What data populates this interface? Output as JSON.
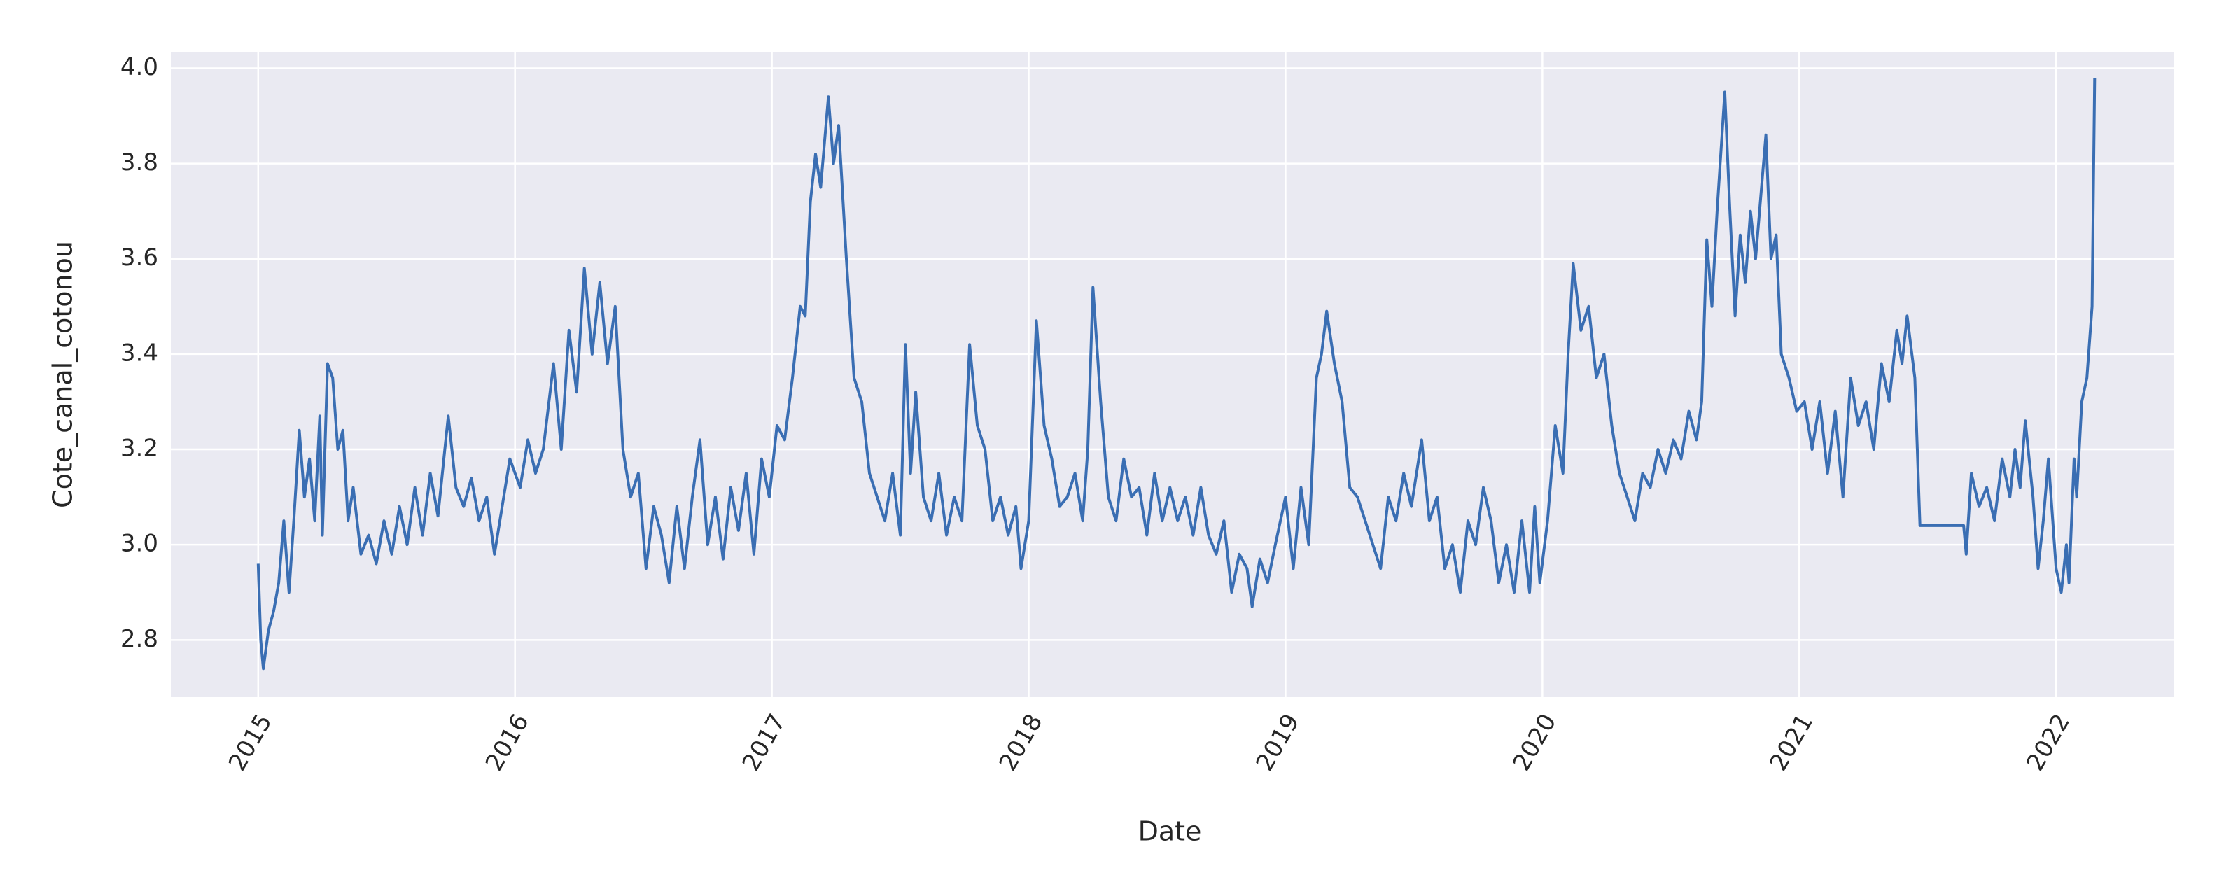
{
  "chart_data": {
    "type": "line",
    "x_label": "Date",
    "y_label": "Cote_canal_cotonou",
    "color": "#3a6eb3",
    "grid": true,
    "xlim": [
      2014.66,
      2022.46
    ],
    "xticks": [
      2015,
      2016,
      2017,
      2018,
      2019,
      2020,
      2021,
      2022
    ],
    "ylim": [
      2.68,
      4.033
    ],
    "yticks": [
      {
        "value": 2.8,
        "label": "2.8"
      },
      {
        "value": 3.0,
        "label": "3.0"
      },
      {
        "value": 3.2,
        "label": "3.2"
      },
      {
        "value": 3.4,
        "label": "3.4"
      },
      {
        "value": 3.6,
        "label": "3.6"
      },
      {
        "value": 3.8,
        "label": "3.8"
      },
      {
        "value": 4.0,
        "label": "4.0"
      }
    ],
    "x": [
      2015.0,
      2015.01,
      2015.02,
      2015.04,
      2015.06,
      2015.08,
      2015.1,
      2015.12,
      2015.14,
      2015.16,
      2015.18,
      2015.2,
      2015.22,
      2015.24,
      2015.25,
      2015.27,
      2015.29,
      2015.31,
      2015.33,
      2015.35,
      2015.37,
      2015.4,
      2015.43,
      2015.46,
      2015.49,
      2015.52,
      2015.55,
      2015.58,
      2015.61,
      2015.64,
      2015.67,
      2015.7,
      2015.74,
      2015.77,
      2015.8,
      2015.83,
      2015.86,
      2015.89,
      2015.92,
      2015.95,
      2015.98,
      2016.02,
      2016.05,
      2016.08,
      2016.11,
      2016.15,
      2016.18,
      2016.21,
      2016.24,
      2016.27,
      2016.3,
      2016.33,
      2016.36,
      2016.39,
      2016.42,
      2016.45,
      2016.48,
      2016.51,
      2016.54,
      2016.57,
      2016.6,
      2016.63,
      2016.66,
      2016.69,
      2016.72,
      2016.75,
      2016.78,
      2016.81,
      2016.84,
      2016.87,
      2016.9,
      2016.93,
      2016.96,
      2016.99,
      2017.02,
      2017.05,
      2017.08,
      2017.11,
      2017.13,
      2017.15,
      2017.17,
      2017.19,
      2017.22,
      2017.24,
      2017.26,
      2017.29,
      2017.32,
      2017.35,
      2017.38,
      2017.41,
      2017.44,
      2017.47,
      2017.5,
      2017.52,
      2017.54,
      2017.56,
      2017.59,
      2017.62,
      2017.65,
      2017.68,
      2017.71,
      2017.74,
      2017.77,
      2017.8,
      2017.83,
      2017.86,
      2017.89,
      2017.92,
      2017.95,
      2017.97,
      2018.0,
      2018.03,
      2018.06,
      2018.09,
      2018.12,
      2018.15,
      2018.18,
      2018.21,
      2018.23,
      2018.25,
      2018.28,
      2018.31,
      2018.34,
      2018.37,
      2018.4,
      2018.43,
      2018.46,
      2018.49,
      2018.52,
      2018.55,
      2018.58,
      2018.61,
      2018.64,
      2018.67,
      2018.7,
      2018.73,
      2018.76,
      2018.79,
      2018.82,
      2018.85,
      2018.87,
      2018.9,
      2018.93,
      2018.96,
      2019.0,
      2019.03,
      2019.06,
      2019.09,
      2019.12,
      2019.14,
      2019.16,
      2019.19,
      2019.22,
      2019.25,
      2019.28,
      2019.31,
      2019.34,
      2019.37,
      2019.4,
      2019.43,
      2019.46,
      2019.49,
      2019.53,
      2019.56,
      2019.59,
      2019.62,
      2019.65,
      2019.68,
      2019.71,
      2019.74,
      2019.77,
      2019.8,
      2019.83,
      2019.86,
      2019.89,
      2019.92,
      2019.95,
      2019.97,
      2019.99,
      2020.02,
      2020.05,
      2020.08,
      2020.1,
      2020.12,
      2020.15,
      2020.18,
      2020.21,
      2020.24,
      2020.27,
      2020.3,
      2020.33,
      2020.36,
      2020.39,
      2020.42,
      2020.45,
      2020.48,
      2020.51,
      2020.54,
      2020.57,
      2020.6,
      2020.62,
      2020.64,
      2020.66,
      2020.68,
      2020.71,
      2020.73,
      2020.75,
      2020.77,
      2020.79,
      2020.81,
      2020.83,
      2020.87,
      2020.89,
      2020.91,
      2020.93,
      2020.96,
      2020.99,
      2021.02,
      2021.05,
      2021.08,
      2021.11,
      2021.14,
      2021.17,
      2021.2,
      2021.23,
      2021.26,
      2021.29,
      2021.32,
      2021.35,
      2021.38,
      2021.4,
      2021.42,
      2021.45,
      2021.47,
      2021.64,
      2021.65,
      2021.67,
      2021.7,
      2021.73,
      2021.76,
      2021.79,
      2021.82,
      2021.84,
      2021.86,
      2021.88,
      2021.91,
      2021.93,
      2021.95,
      2021.97,
      2022.0,
      2022.02,
      2022.04,
      2022.05,
      2022.07,
      2022.08,
      2022.1,
      2022.12,
      2022.14,
      2022.15
    ],
    "values": [
      2.96,
      2.8,
      2.74,
      2.82,
      2.86,
      2.92,
      3.05,
      2.9,
      3.06,
      3.24,
      3.1,
      3.18,
      3.05,
      3.27,
      3.02,
      3.38,
      3.35,
      3.2,
      3.24,
      3.05,
      3.12,
      2.98,
      3.02,
      2.96,
      3.05,
      2.98,
      3.08,
      3.0,
      3.12,
      3.02,
      3.15,
      3.06,
      3.27,
      3.12,
      3.08,
      3.14,
      3.05,
      3.1,
      2.98,
      3.08,
      3.18,
      3.12,
      3.22,
      3.15,
      3.2,
      3.38,
      3.2,
      3.45,
      3.32,
      3.58,
      3.4,
      3.55,
      3.38,
      3.5,
      3.2,
      3.1,
      3.15,
      2.95,
      3.08,
      3.02,
      2.92,
      3.08,
      2.95,
      3.1,
      3.22,
      3.0,
      3.1,
      2.97,
      3.12,
      3.03,
      3.15,
      2.98,
      3.18,
      3.1,
      3.25,
      3.22,
      3.35,
      3.5,
      3.48,
      3.72,
      3.82,
      3.75,
      3.94,
      3.8,
      3.88,
      3.6,
      3.35,
      3.3,
      3.15,
      3.1,
      3.05,
      3.15,
      3.02,
      3.42,
      3.15,
      3.32,
      3.1,
      3.05,
      3.15,
      3.02,
      3.1,
      3.05,
      3.42,
      3.25,
      3.2,
      3.05,
      3.1,
      3.02,
      3.08,
      2.95,
      3.05,
      3.47,
      3.25,
      3.18,
      3.08,
      3.1,
      3.15,
      3.05,
      3.2,
      3.54,
      3.3,
      3.1,
      3.05,
      3.18,
      3.1,
      3.12,
      3.02,
      3.15,
      3.05,
      3.12,
      3.05,
      3.1,
      3.02,
      3.12,
      3.02,
      2.98,
      3.05,
      2.9,
      2.98,
      2.95,
      2.87,
      2.97,
      2.92,
      3.0,
      3.1,
      2.95,
      3.12,
      3.0,
      3.35,
      3.4,
      3.49,
      3.38,
      3.3,
      3.12,
      3.1,
      3.05,
      3.0,
      2.95,
      3.1,
      3.05,
      3.15,
      3.08,
      3.22,
      3.05,
      3.1,
      2.95,
      3.0,
      2.9,
      3.05,
      3.0,
      3.12,
      3.05,
      2.92,
      3.0,
      2.9,
      3.05,
      2.9,
      3.08,
      2.92,
      3.05,
      3.25,
      3.15,
      3.4,
      3.59,
      3.45,
      3.5,
      3.35,
      3.4,
      3.25,
      3.15,
      3.1,
      3.05,
      3.15,
      3.12,
      3.2,
      3.15,
      3.22,
      3.18,
      3.28,
      3.22,
      3.3,
      3.64,
      3.5,
      3.7,
      3.95,
      3.7,
      3.48,
      3.65,
      3.55,
      3.7,
      3.6,
      3.86,
      3.6,
      3.65,
      3.4,
      3.35,
      3.28,
      3.3,
      3.2,
      3.3,
      3.15,
      3.28,
      3.1,
      3.35,
      3.25,
      3.3,
      3.2,
      3.38,
      3.3,
      3.45,
      3.38,
      3.48,
      3.35,
      3.04,
      3.04,
      2.98,
      3.15,
      3.08,
      3.12,
      3.05,
      3.18,
      3.1,
      3.2,
      3.12,
      3.26,
      3.1,
      2.95,
      3.05,
      3.18,
      2.95,
      2.9,
      3.0,
      2.92,
      3.18,
      3.1,
      3.3,
      3.35,
      3.5,
      3.98
    ]
  }
}
